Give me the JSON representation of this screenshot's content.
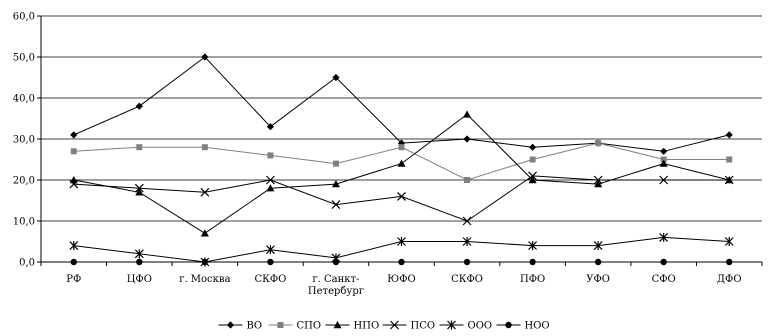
{
  "chart_data": {
    "type": "line",
    "title": "",
    "xlabel": "",
    "ylabel": "",
    "ylim": [
      0,
      60
    ],
    "yticks": [
      "0,0",
      "10,0",
      "20,0",
      "30,0",
      "40,0",
      "50,0",
      "60,0"
    ],
    "yticks_values": [
      0,
      10,
      20,
      30,
      40,
      50,
      60
    ],
    "grid": "horizontal",
    "legend_position": "bottom",
    "categories": [
      "РФ",
      "ЦФО",
      "г. Москва",
      "СКФО",
      "г. Санкт-\nПетербург",
      "ЮФО",
      "СКФО",
      "ПФО",
      "УФО",
      "СФО",
      "ДФО"
    ],
    "series": [
      {
        "name": "ВО",
        "color": "#000000",
        "marker": "diamond",
        "values": [
          31,
          38,
          50,
          33,
          45,
          29,
          30,
          28,
          29,
          27,
          31
        ]
      },
      {
        "name": "СПО",
        "color": "#808080",
        "marker": "square",
        "values": [
          27,
          28,
          28,
          26,
          24,
          28,
          20,
          25,
          29,
          25,
          25
        ]
      },
      {
        "name": "НПО",
        "color": "#000000",
        "marker": "triangle",
        "values": [
          20,
          17,
          7,
          18,
          19,
          24,
          36,
          20,
          19,
          24,
          20
        ]
      },
      {
        "name": "ПСО",
        "color": "#000000",
        "marker": "x",
        "values": [
          19,
          18,
          17,
          20,
          14,
          16,
          10,
          21,
          20,
          20,
          20
        ]
      },
      {
        "name": "ООО",
        "color": "#000000",
        "marker": "star",
        "values": [
          4,
          2,
          0,
          3,
          1,
          5,
          5,
          4,
          4,
          6,
          5
        ]
      },
      {
        "name": "НОО",
        "color": "#000000",
        "marker": "circle",
        "values": [
          0,
          0,
          0,
          0,
          0,
          0,
          0,
          0,
          0,
          0,
          0
        ]
      }
    ]
  }
}
